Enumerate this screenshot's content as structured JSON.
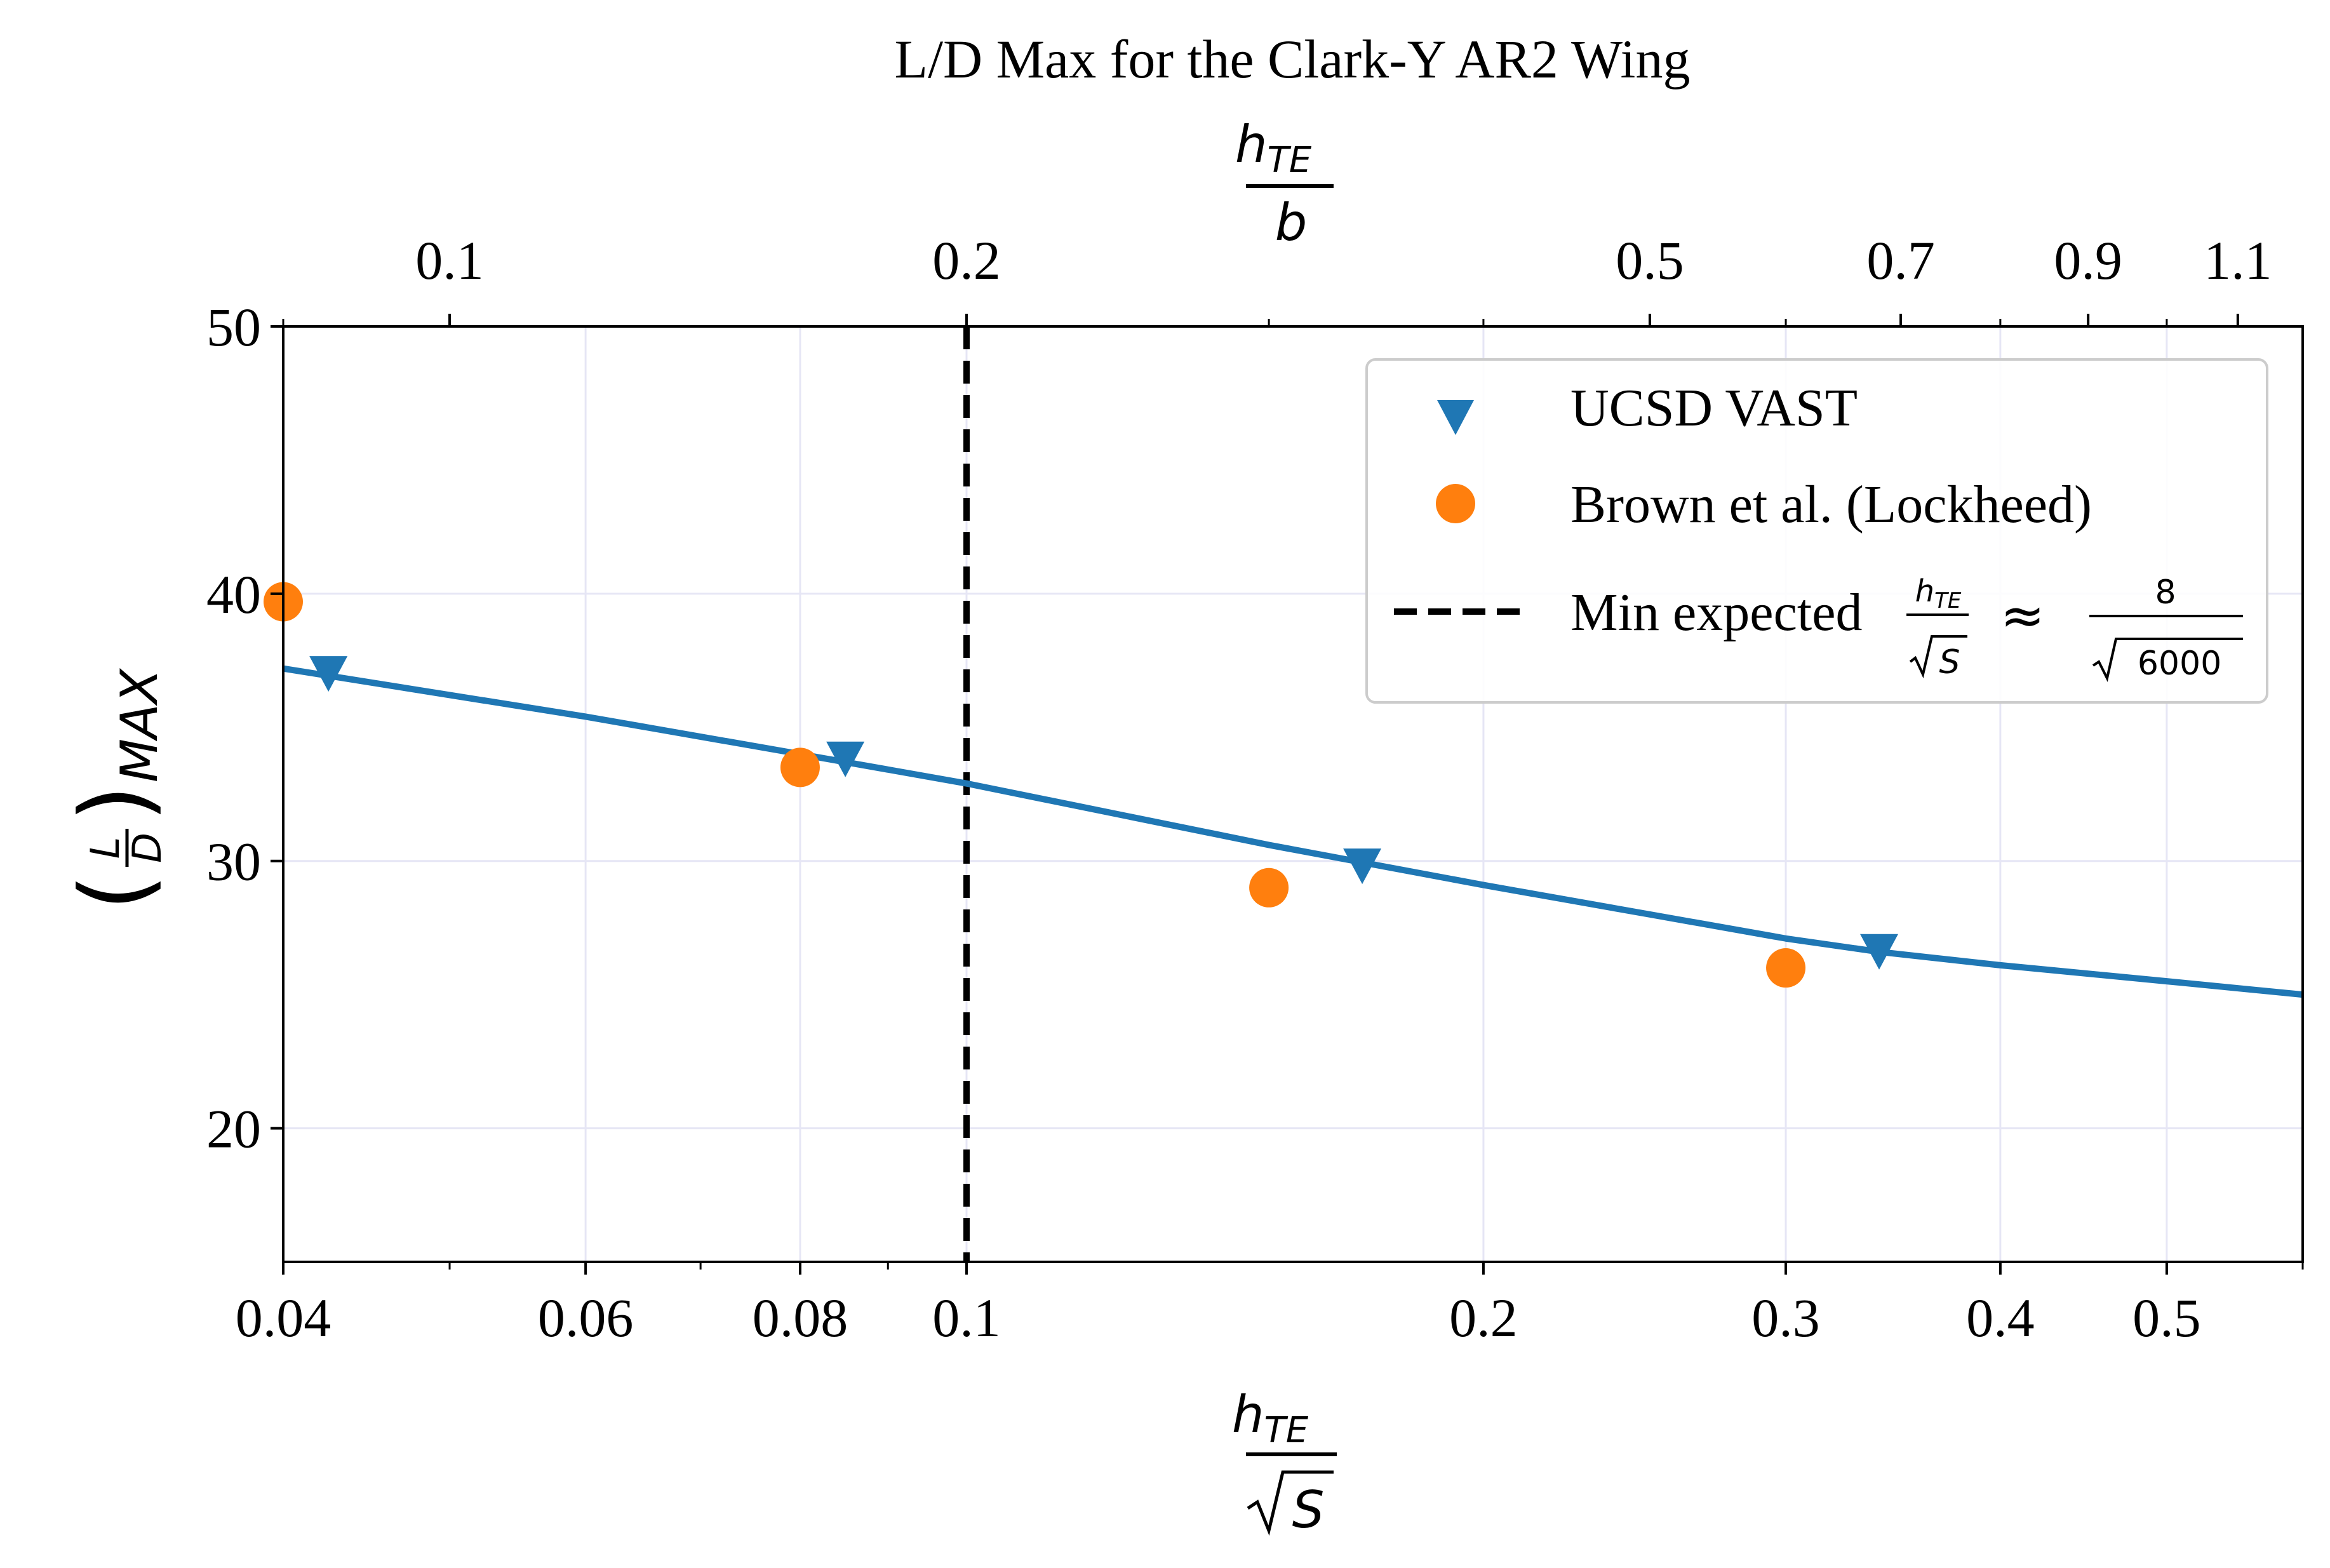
{
  "chart_data": {
    "type": "scatter",
    "title": "L/D Max for the Clark-Y AR2 Wing",
    "xscale": "log",
    "xlim": [
      0.04,
      0.6
    ],
    "ylim": [
      15,
      50
    ],
    "grid": true,
    "legend_position": "top-right",
    "x_ticks": [
      {
        "value": 0.04,
        "label": "0.04"
      },
      {
        "value": 0.06,
        "label": "0.06"
      },
      {
        "value": 0.08,
        "label": "0.08"
      },
      {
        "value": 0.1,
        "label": "0.1"
      },
      {
        "value": 0.2,
        "label": "0.2"
      },
      {
        "value": 0.3,
        "label": "0.3"
      },
      {
        "value": 0.4,
        "label": "0.4"
      },
      {
        "value": 0.5,
        "label": "0.5"
      }
    ],
    "x_minor_ticks": [
      0.05,
      0.07,
      0.09,
      0.6
    ],
    "y_ticks": [
      20,
      30,
      40,
      50
    ],
    "top_axis": {
      "ticks": [
        {
          "value": 0.1,
          "label": "0.1"
        },
        {
          "value": 0.2,
          "label": "0.2"
        },
        {
          "value": 0.5,
          "label": "0.5"
        },
        {
          "value": 0.7,
          "label": "0.7"
        },
        {
          "value": 0.9,
          "label": "0.9"
        },
        {
          "value": 1.1,
          "label": "1.1"
        }
      ],
      "minor_ticks": [
        0.08,
        0.3,
        0.4,
        0.6,
        0.8,
        1.0
      ],
      "bottom_per_top": 0.5
    },
    "series": [
      {
        "name": "UCSD VAST",
        "marker": "triangle-down",
        "color": "#1f77b4",
        "x": [
          0.0425,
          0.085,
          0.17,
          0.34
        ],
        "y": [
          37.0,
          33.8,
          29.8,
          26.6
        ]
      },
      {
        "name": "Brown et al. (Lockheed)",
        "marker": "circle",
        "color": "#ff7f0e",
        "x": [
          0.04,
          0.08,
          0.15,
          0.3
        ],
        "y": [
          39.7,
          33.5,
          29.0,
          26.0
        ]
      }
    ],
    "fit_curve": {
      "color": "#1f77b4",
      "x": [
        0.04,
        0.06,
        0.08,
        0.1,
        0.15,
        0.2,
        0.25,
        0.3,
        0.34,
        0.4,
        0.5,
        0.6
      ],
      "y": [
        37.2,
        35.4,
        34.0,
        32.9,
        30.6,
        29.1,
        28.0,
        27.1,
        26.6,
        26.1,
        25.5,
        25.0
      ]
    },
    "reference_line": {
      "x": 0.1,
      "color": "#000000",
      "label_text": "Min expected",
      "label_approx": "≈",
      "label_numerator": "8",
      "label_denominator": "6000"
    },
    "xlabel": {
      "numerator": "h",
      "subscript": "TE",
      "denominator": "S"
    },
    "top_xlabel": {
      "numerator": "h",
      "subscript": "TE",
      "denominator": "b"
    },
    "ylabel": {
      "num": "L",
      "den": "D",
      "subscript": "MAX"
    }
  }
}
